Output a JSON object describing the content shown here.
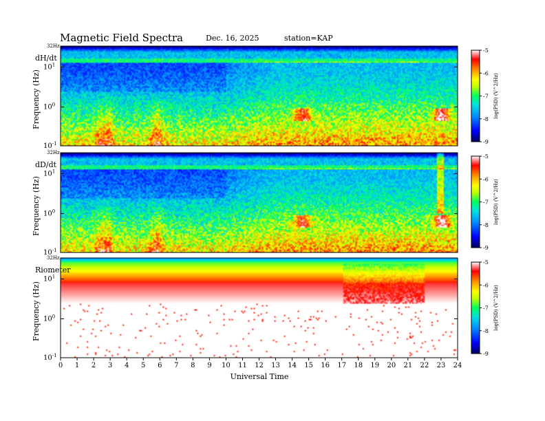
{
  "header": {
    "title": "Magnetic  Field  Spectra",
    "date": "Dec. 16, 2025",
    "station": "station=KAP"
  },
  "chart_data": {
    "type": "heatmap",
    "x_axis": {
      "label": "Universal Time",
      "range": [
        0,
        24
      ],
      "ticks": [
        "0",
        "1",
        "2",
        "3",
        "4",
        "5",
        "6",
        "7",
        "8",
        "9",
        "10",
        "11",
        "12",
        "13",
        "14",
        "15",
        "16",
        "17",
        "18",
        "19",
        "20",
        "21",
        "22",
        "23",
        "24"
      ]
    },
    "colorbar": {
      "label": "log(PSD) (V^2/Hz)",
      "range": [
        -9,
        -5
      ],
      "ticks": [
        "-5",
        "-6",
        "-7",
        "-8",
        "-9"
      ],
      "colormap": [
        "#000060",
        "#0000ff",
        "#0090ff",
        "#00e0e0",
        "#00ff60",
        "#c0ff00",
        "#ffff00",
        "#ff8000",
        "#ff0000",
        "#ffffff"
      ]
    },
    "panels": [
      {
        "name": "dH/dt",
        "ylabel": "Frequency  (Hz)",
        "top_label": "32Hz",
        "ytick_labels": [
          "10^1",
          "10^0",
          "10^-1"
        ]
      },
      {
        "name": "dD/dt",
        "ylabel": "Frequency  (Hz)",
        "top_label": "32Hz",
        "ytick_labels": [
          "10^1",
          "10^0",
          "10^-1"
        ]
      },
      {
        "name": "Riometer",
        "ylabel": "Frequency  (Hz)",
        "top_label": "32Hz",
        "ytick_labels": [
          "10^1",
          "10^0",
          "10^-1"
        ]
      }
    ]
  }
}
